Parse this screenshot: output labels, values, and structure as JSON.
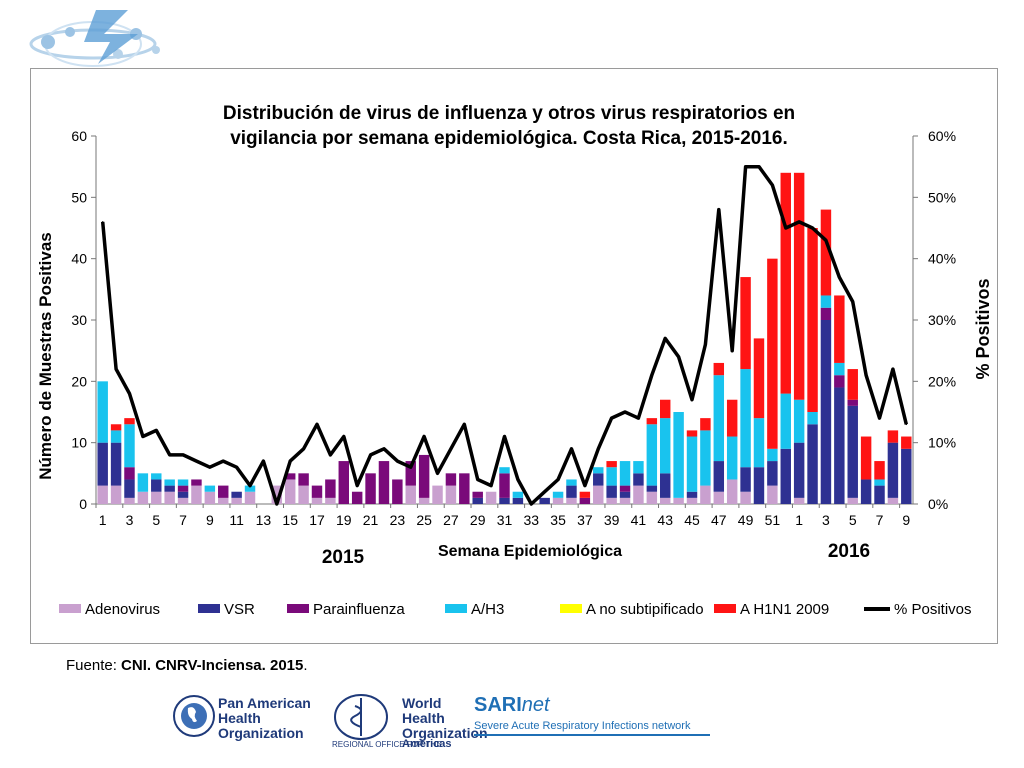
{
  "source": {
    "label": "Fuente:",
    "value": "CNI. CNRV-Inciensa. 2015",
    "end": "."
  },
  "logos": {
    "paho": "Pan American Health Organization",
    "who": "World Health Organization",
    "who_regional": "REGIONAL OFFICE FOR THE",
    "who_americas": "Americas",
    "sari_a": "SARI",
    "sari_b": "net",
    "sari_sub": "Severe Acute Respiratory Infections network"
  },
  "chart_data": {
    "type": "bar",
    "title": "Distribución de virus de influenza y otros virus respiratorios en vigilancia por semana epidemiológica. Costa Rica, 2015-2016.",
    "title_lines": [
      "Distribución de virus de influenza y otros virus respiratorios en",
      "vigilancia por semana epidemiológica. Costa Rica, 2015-2016."
    ],
    "xlabel": "Semana Epidemiológica",
    "ylabel": "Número de Muestras Positivas",
    "y2label": "% Positivos",
    "year_labels": [
      "2015",
      "2016"
    ],
    "ylim": [
      0,
      60
    ],
    "y2lim": [
      0,
      60
    ],
    "yticks": [
      "0",
      "10",
      "20",
      "30",
      "40",
      "50",
      "60"
    ],
    "y2ticks": [
      "0%",
      "10%",
      "20%",
      "30%",
      "40%",
      "50%",
      "60%"
    ],
    "categories": [
      "1",
      "2",
      "3",
      "4",
      "5",
      "6",
      "7",
      "8",
      "9",
      "10",
      "11",
      "12",
      "13",
      "14",
      "15",
      "16",
      "17",
      "18",
      "19",
      "20",
      "21",
      "22",
      "23",
      "24",
      "25",
      "26",
      "27",
      "28",
      "29",
      "30",
      "31",
      "32",
      "33",
      "34",
      "35",
      "36",
      "37",
      "38",
      "39",
      "40",
      "41",
      "42",
      "43",
      "44",
      "45",
      "46",
      "47",
      "48",
      "49",
      "50",
      "51",
      "52",
      "1",
      "2",
      "3",
      "4",
      "5",
      "6",
      "7",
      "8",
      "9"
    ],
    "xtick_labels": [
      "1",
      "3",
      "5",
      "7",
      "9",
      "11",
      "13",
      "15",
      "17",
      "19",
      "21",
      "23",
      "25",
      "27",
      "29",
      "31",
      "33",
      "35",
      "37",
      "39",
      "41",
      "43",
      "45",
      "47",
      "49",
      "51",
      "1",
      "3",
      "5",
      "7",
      "9"
    ],
    "stacked": true,
    "series": [
      {
        "name": "Adenovirus",
        "color": "#c9a0cf",
        "values": [
          3,
          3,
          1,
          2,
          2,
          2,
          1,
          3,
          2,
          1,
          1,
          2,
          0,
          3,
          4,
          3,
          1,
          1,
          0,
          0,
          0,
          0,
          0,
          3,
          1,
          3,
          3,
          0,
          0,
          2,
          0,
          0,
          0,
          0,
          1,
          1,
          0,
          3,
          1,
          1,
          3,
          2,
          1,
          1,
          1,
          3,
          2,
          4,
          2,
          0,
          3,
          0,
          1,
          0,
          0,
          0,
          1,
          0,
          0,
          1,
          0
        ]
      },
      {
        "name": "VSR",
        "color": "#2e3192",
        "values": [
          7,
          7,
          3,
          0,
          2,
          1,
          1,
          0,
          0,
          0,
          1,
          0,
          0,
          0,
          0,
          0,
          0,
          0,
          0,
          0,
          0,
          0,
          0,
          0,
          0,
          0,
          0,
          0,
          1,
          0,
          1,
          1,
          0,
          1,
          0,
          2,
          0,
          2,
          2,
          1,
          2,
          1,
          4,
          0,
          1,
          0,
          5,
          0,
          4,
          6,
          4,
          9,
          9,
          13,
          30,
          19,
          15,
          4,
          3,
          9,
          9
        ]
      },
      {
        "name": "Parainfluenza",
        "color": "#7a0a7a",
        "values": [
          0,
          0,
          2,
          0,
          0,
          0,
          1,
          1,
          0,
          2,
          0,
          0,
          0,
          0,
          1,
          2,
          2,
          3,
          7,
          2,
          5,
          7,
          4,
          4,
          7,
          0,
          2,
          5,
          1,
          0,
          4,
          0,
          0,
          0,
          0,
          0,
          1,
          0,
          0,
          1,
          0,
          0,
          0,
          0,
          0,
          0,
          0,
          0,
          0,
          0,
          0,
          0,
          0,
          0,
          2,
          2,
          1,
          0,
          0,
          0,
          0
        ]
      },
      {
        "name": "A/H3",
        "color": "#19c3ee",
        "values": [
          10,
          2,
          7,
          3,
          1,
          1,
          1,
          0,
          1,
          0,
          0,
          1,
          0,
          0,
          0,
          0,
          0,
          0,
          0,
          0,
          0,
          0,
          0,
          0,
          0,
          0,
          0,
          0,
          0,
          0,
          1,
          1,
          0,
          0,
          1,
          1,
          0,
          1,
          3,
          4,
          2,
          10,
          9,
          14,
          9,
          9,
          14,
          7,
          16,
          8,
          2,
          9,
          7,
          2,
          2,
          2,
          0,
          0,
          1,
          0,
          0
        ]
      },
      {
        "name": "A no subtipificado",
        "color": "#ffff00",
        "values": [
          0,
          0,
          0,
          0,
          0,
          0,
          0,
          0,
          0,
          0,
          0,
          0,
          0,
          0,
          0,
          0,
          0,
          0,
          0,
          0,
          0,
          0,
          0,
          0,
          0,
          0,
          0,
          0,
          0,
          0,
          0,
          0,
          0,
          0,
          0,
          0,
          0,
          0,
          0,
          0,
          0,
          0,
          0,
          0,
          0,
          0,
          0,
          0,
          0,
          0,
          0,
          0,
          0,
          0,
          0,
          0,
          0,
          0,
          0,
          0,
          0
        ]
      },
      {
        "name": "A H1N1 2009",
        "color": "#ff1414",
        "values": [
          0,
          1,
          1,
          0,
          0,
          0,
          0,
          0,
          0,
          0,
          0,
          0,
          0,
          0,
          0,
          0,
          0,
          0,
          0,
          0,
          0,
          0,
          0,
          0,
          0,
          0,
          0,
          0,
          0,
          0,
          0,
          0,
          0,
          0,
          0,
          0,
          1,
          0,
          1,
          0,
          0,
          1,
          3,
          0,
          1,
          2,
          2,
          6,
          15,
          13,
          31,
          36,
          37,
          30,
          14,
          11,
          5,
          7,
          3,
          2,
          2
        ]
      },
      {
        "name": "% Positivos",
        "color": "#000000",
        "kind": "line",
        "axis": "right",
        "values": [
          46,
          22,
          18,
          11,
          12,
          8,
          8,
          7,
          6,
          7,
          6,
          3,
          7,
          0,
          7,
          9,
          13,
          8,
          11,
          3,
          8,
          9,
          7,
          6,
          11,
          5,
          9,
          13,
          4,
          3,
          11,
          4,
          0,
          2,
          4,
          9,
          3,
          9,
          14,
          15,
          14,
          21,
          27,
          24,
          17,
          26,
          48,
          25,
          55,
          55,
          52,
          45,
          46,
          45,
          43,
          37,
          33,
          21,
          14,
          22,
          13
        ]
      }
    ],
    "legend_position": "bottom",
    "grid": false
  }
}
